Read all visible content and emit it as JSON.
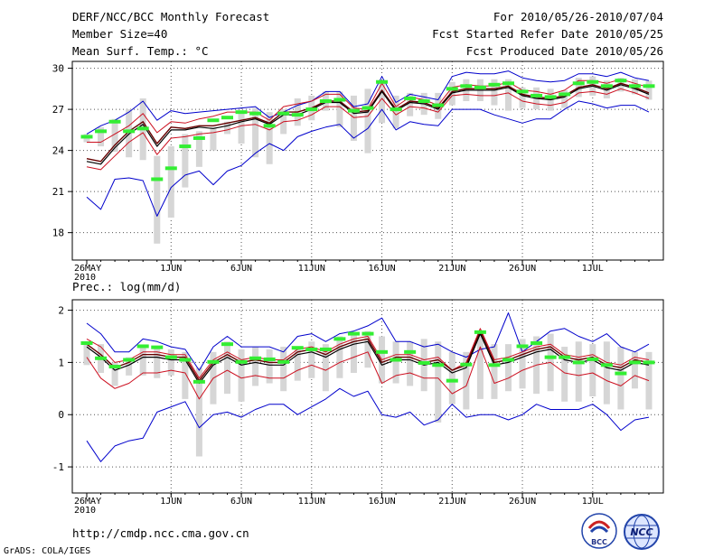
{
  "header": {
    "title": "DERF/NCC/BCC Monthly Forecast",
    "member_size": "Member Size=40",
    "variable1": "Mean Surf. Temp.: °C",
    "period": "For 2010/05/26-2010/07/04",
    "fcst_started": "Fcst Started Refer Date 2010/05/25",
    "fcst_produced": "Fcst Produced Date 2010/05/26"
  },
  "footer": {
    "url": "http://cmdp.ncc.cma.gov.cn",
    "grads": "GrADS: COLA/IGES",
    "logo_bcc": "BCC",
    "logo_ncc": "NCC"
  },
  "colors": {
    "max_min": "#0000cc",
    "bounds": "#cc1020",
    "ens_mean": "#000000",
    "control": "#660000",
    "box": "#d6d6d6",
    "obs": "#33ee33"
  },
  "chart_data": [
    {
      "type": "line",
      "title": "Mean Surf. Temp.: °C",
      "ylim": [
        16,
        30.5
      ],
      "yticks": [
        18,
        21,
        24,
        27,
        30
      ],
      "xticks": [
        {
          "day": 0,
          "label": "26MAY",
          "sub": "2010"
        },
        {
          "day": 6,
          "label": "1JUN"
        },
        {
          "day": 11,
          "label": "6JUN"
        },
        {
          "day": 16,
          "label": "11JUN"
        },
        {
          "day": 21,
          "label": "16JUN"
        },
        {
          "day": 26,
          "label": "21JUN"
        },
        {
          "day": 31,
          "label": "26JUN"
        },
        {
          "day": 36,
          "label": "1JUL"
        }
      ],
      "grid": true,
      "series": [
        {
          "name": "max",
          "values": [
            25.2,
            25.8,
            26.2,
            26.8,
            27.6,
            26.2,
            26.9,
            26.7,
            26.8,
            26.9,
            27.0,
            27.1,
            27.2,
            26.4,
            26.8,
            27.3,
            27.6,
            28.3,
            28.3,
            27.2,
            27.4,
            29.4,
            27.5,
            28.1,
            27.9,
            27.7,
            29.4,
            29.7,
            29.6,
            29.6,
            29.8,
            29.3,
            29.1,
            29.0,
            29.1,
            29.6,
            29.6,
            29.4,
            29.7,
            29.3,
            29.1
          ]
        },
        {
          "name": "upper",
          "values": [
            24.6,
            24.6,
            25.2,
            25.8,
            26.7,
            25.3,
            26.1,
            26.0,
            26.3,
            26.5,
            26.8,
            26.8,
            26.8,
            26.2,
            27.2,
            27.4,
            27.6,
            28.1,
            28.1,
            27.1,
            27.0,
            28.9,
            27.2,
            27.9,
            27.7,
            27.3,
            28.6,
            28.8,
            28.7,
            28.7,
            29.0,
            28.4,
            28.3,
            28.1,
            28.4,
            29.1,
            29.1,
            28.9,
            29.2,
            28.9,
            28.6
          ]
        },
        {
          "name": "ens_mean",
          "values": [
            23.2,
            23.0,
            24.2,
            25.2,
            25.9,
            24.3,
            25.5,
            25.5,
            25.7,
            25.6,
            25.8,
            26.1,
            26.3,
            25.9,
            26.6,
            26.6,
            27.0,
            27.5,
            27.5,
            26.7,
            26.8,
            28.3,
            26.9,
            27.5,
            27.4,
            27.0,
            28.2,
            28.4,
            28.4,
            28.4,
            28.6,
            28.0,
            27.8,
            27.7,
            27.9,
            28.5,
            28.7,
            28.4,
            28.8,
            28.5,
            28.1
          ]
        },
        {
          "name": "control",
          "values": [
            23.4,
            23.2,
            24.4,
            25.4,
            26.1,
            24.5,
            25.7,
            25.6,
            25.8,
            25.8,
            26.0,
            26.2,
            26.4,
            26.0,
            26.8,
            26.8,
            27.1,
            27.6,
            27.6,
            26.8,
            26.9,
            28.4,
            27.0,
            27.6,
            27.5,
            27.1,
            28.3,
            28.5,
            28.5,
            28.5,
            28.7,
            28.1,
            27.9,
            27.8,
            28.0,
            28.6,
            28.8,
            28.5,
            28.9,
            28.6,
            28.2
          ]
        },
        {
          "name": "lower",
          "values": [
            22.8,
            22.6,
            23.6,
            24.6,
            25.3,
            23.7,
            24.9,
            25.0,
            25.2,
            25.3,
            25.5,
            25.8,
            25.9,
            25.5,
            26.1,
            26.2,
            26.6,
            27.2,
            27.2,
            26.4,
            26.5,
            27.8,
            26.6,
            27.2,
            27.1,
            26.8,
            28.0,
            28.1,
            28.0,
            28.0,
            28.2,
            27.6,
            27.4,
            27.3,
            27.5,
            28.2,
            28.3,
            28.1,
            28.5,
            28.2,
            27.8
          ]
        },
        {
          "name": "min",
          "values": [
            20.6,
            19.7,
            21.9,
            22.0,
            21.8,
            19.2,
            21.3,
            22.2,
            22.5,
            21.5,
            22.5,
            22.9,
            23.8,
            24.5,
            24.0,
            25.0,
            25.4,
            25.7,
            25.9,
            24.9,
            25.6,
            27.0,
            25.5,
            26.1,
            25.9,
            25.8,
            27.0,
            27.0,
            27.0,
            26.6,
            26.3,
            26.0,
            26.3,
            26.3,
            27.0,
            27.6,
            27.4,
            27.1,
            27.3,
            27.3,
            26.8
          ]
        },
        {
          "name": "box_top",
          "values": [
            25.2,
            25.7,
            26.3,
            27.0,
            27.8,
            23.6,
            24.3,
            25.2,
            25.4,
            25.7,
            26.1,
            26.7,
            27.1,
            26.8,
            27.0,
            27.8,
            28.0,
            28.3,
            28.3,
            28.0,
            28.5,
            29.1,
            28.0,
            28.2,
            28.2,
            28.2,
            29.0,
            29.2,
            29.2,
            29.2,
            29.2,
            28.6,
            28.6,
            28.5,
            28.4,
            29.3,
            29.4,
            29.1,
            29.3,
            29.2,
            29.1
          ]
        },
        {
          "name": "box_bottom",
          "values": [
            24.6,
            24.3,
            23.9,
            23.5,
            23.3,
            17.2,
            19.1,
            21.3,
            22.8,
            24.0,
            25.2,
            24.5,
            23.5,
            23.0,
            25.2,
            25.8,
            26.2,
            26.9,
            25.7,
            24.7,
            23.8,
            26.0,
            25.6,
            26.5,
            26.6,
            26.3,
            27.3,
            27.6,
            27.6,
            27.3,
            26.9,
            27.1,
            27.0,
            26.9,
            27.1,
            27.9,
            28.0,
            27.8,
            28.3,
            28.1,
            27.7
          ]
        },
        {
          "name": "observed",
          "values": [
            25.0,
            25.4,
            26.1,
            25.4,
            25.6,
            21.9,
            22.7,
            24.3,
            24.9,
            26.2,
            26.4,
            26.8,
            26.7,
            25.8,
            26.7,
            26.6,
            27.0,
            27.6,
            27.7,
            26.9,
            27.1,
            29.0,
            27.0,
            27.8,
            27.6,
            27.3,
            28.5,
            28.7,
            28.6,
            28.8,
            28.9,
            28.3,
            28.0,
            27.9,
            28.1,
            28.9,
            29.0,
            28.7,
            29.1,
            28.7,
            28.7
          ]
        }
      ]
    },
    {
      "type": "line",
      "title": "Prec.: log(mm/d)",
      "ylim": [
        -1.5,
        2.2
      ],
      "yticks": [
        -1,
        0,
        1,
        2
      ],
      "xticks": [
        {
          "day": 0,
          "label": "26MAY",
          "sub": "2010"
        },
        {
          "day": 6,
          "label": "1JUN"
        },
        {
          "day": 11,
          "label": "6JUN"
        },
        {
          "day": 16,
          "label": "11JUN"
        },
        {
          "day": 21,
          "label": "16JUN"
        },
        {
          "day": 26,
          "label": "21JUN"
        },
        {
          "day": 31,
          "label": "26JUN"
        },
        {
          "day": 36,
          "label": "1JUL"
        }
      ],
      "grid": true,
      "series": [
        {
          "name": "max",
          "values": [
            1.75,
            1.55,
            1.2,
            1.2,
            1.45,
            1.4,
            1.3,
            1.25,
            0.85,
            1.3,
            1.5,
            1.3,
            1.3,
            1.3,
            1.2,
            1.5,
            1.55,
            1.4,
            1.55,
            1.6,
            1.7,
            1.85,
            1.4,
            1.4,
            1.3,
            1.35,
            1.2,
            1.1,
            1.25,
            1.3,
            1.95,
            1.2,
            1.4,
            1.6,
            1.65,
            1.5,
            1.4,
            1.55,
            1.3,
            1.2,
            1.35
          ]
        },
        {
          "name": "upper",
          "values": [
            1.45,
            1.3,
            1.0,
            1.05,
            1.2,
            1.2,
            1.15,
            1.15,
            0.7,
            1.05,
            1.2,
            1.05,
            1.1,
            1.05,
            1.05,
            1.25,
            1.3,
            1.2,
            1.35,
            1.45,
            1.5,
            1.05,
            1.15,
            1.15,
            1.05,
            1.1,
            0.85,
            1.0,
            1.65,
            1.05,
            1.1,
            1.2,
            1.3,
            1.35,
            1.15,
            1.1,
            1.15,
            1.0,
            0.95,
            1.1,
            1.05
          ]
        },
        {
          "name": "ens_mean",
          "values": [
            1.3,
            1.1,
            0.85,
            0.95,
            1.1,
            1.1,
            1.05,
            1.05,
            0.6,
            0.95,
            1.1,
            0.95,
            1.0,
            0.95,
            0.95,
            1.15,
            1.2,
            1.1,
            1.25,
            1.35,
            1.4,
            0.95,
            1.05,
            1.05,
            0.95,
            1.0,
            0.8,
            0.9,
            1.55,
            0.95,
            1.0,
            1.1,
            1.2,
            1.25,
            1.05,
            1.0,
            1.05,
            0.9,
            0.85,
            1.0,
            0.95
          ]
        },
        {
          "name": "control",
          "values": [
            1.35,
            1.15,
            0.9,
            1.0,
            1.15,
            1.15,
            1.1,
            1.1,
            0.65,
            1.0,
            1.15,
            1.0,
            1.05,
            1.0,
            1.0,
            1.2,
            1.25,
            1.15,
            1.3,
            1.4,
            1.45,
            1.0,
            1.1,
            1.1,
            1.0,
            1.05,
            0.85,
            0.95,
            1.6,
            1.0,
            1.05,
            1.15,
            1.25,
            1.3,
            1.1,
            1.05,
            1.1,
            0.95,
            0.9,
            1.05,
            1.0
          ]
        },
        {
          "name": "lower",
          "values": [
            1.1,
            0.7,
            0.5,
            0.6,
            0.8,
            0.8,
            0.85,
            0.8,
            0.3,
            0.7,
            0.85,
            0.7,
            0.75,
            0.7,
            0.7,
            0.85,
            0.95,
            0.85,
            1.0,
            1.1,
            1.2,
            0.6,
            0.75,
            0.8,
            0.7,
            0.7,
            0.4,
            0.55,
            1.3,
            0.6,
            0.7,
            0.85,
            0.95,
            1.0,
            0.8,
            0.75,
            0.8,
            0.65,
            0.55,
            0.75,
            0.65
          ]
        },
        {
          "name": "min",
          "values": [
            -0.5,
            -0.9,
            -0.6,
            -0.5,
            -0.45,
            0.05,
            0.15,
            0.25,
            -0.25,
            0.0,
            0.05,
            -0.05,
            0.1,
            0.2,
            0.2,
            0.0,
            0.15,
            0.3,
            0.5,
            0.35,
            0.45,
            0.0,
            -0.05,
            0.05,
            -0.2,
            -0.1,
            0.2,
            -0.05,
            0.0,
            0.0,
            -0.1,
            0.0,
            0.2,
            0.1,
            0.1,
            0.1,
            0.2,
            0.0,
            -0.3,
            -0.1,
            -0.05
          ]
        },
        {
          "name": "box_top",
          "values": [
            1.4,
            1.35,
            1.0,
            1.1,
            1.3,
            1.3,
            1.25,
            1.2,
            0.9,
            1.2,
            1.4,
            1.25,
            1.3,
            1.25,
            1.3,
            1.3,
            1.4,
            1.35,
            1.5,
            1.55,
            1.6,
            1.5,
            1.4,
            1.4,
            1.45,
            1.4,
            1.2,
            1.2,
            1.55,
            1.35,
            1.35,
            1.45,
            1.5,
            1.55,
            1.3,
            1.4,
            1.35,
            1.4,
            1.3,
            1.2,
            1.2
          ]
        },
        {
          "name": "box_bottom",
          "values": [
            0.95,
            0.8,
            0.55,
            0.75,
            0.75,
            0.7,
            0.75,
            0.3,
            -0.8,
            0.2,
            0.4,
            0.25,
            0.55,
            0.6,
            0.45,
            0.65,
            0.7,
            0.45,
            0.7,
            0.8,
            0.9,
            0.6,
            0.6,
            0.55,
            0.45,
            -0.15,
            0.2,
            0.1,
            0.3,
            0.3,
            0.45,
            0.5,
            0.4,
            0.45,
            0.25,
            0.25,
            0.35,
            0.2,
            0.1,
            0.5,
            0.1
          ]
        },
        {
          "name": "observed",
          "values": [
            1.37,
            1.08,
            0.92,
            1.05,
            1.31,
            1.29,
            1.1,
            1.05,
            0.63,
            1.01,
            1.35,
            1.01,
            1.08,
            1.06,
            1.01,
            1.28,
            1.25,
            1.25,
            1.45,
            1.55,
            1.55,
            1.2,
            1.05,
            1.2,
            0.99,
            0.95,
            0.65,
            0.96,
            1.58,
            0.95,
            1.05,
            1.31,
            1.37,
            1.1,
            1.1,
            1.0,
            1.06,
            0.95,
            0.79,
            1.0,
            1.0
          ]
        }
      ]
    }
  ]
}
